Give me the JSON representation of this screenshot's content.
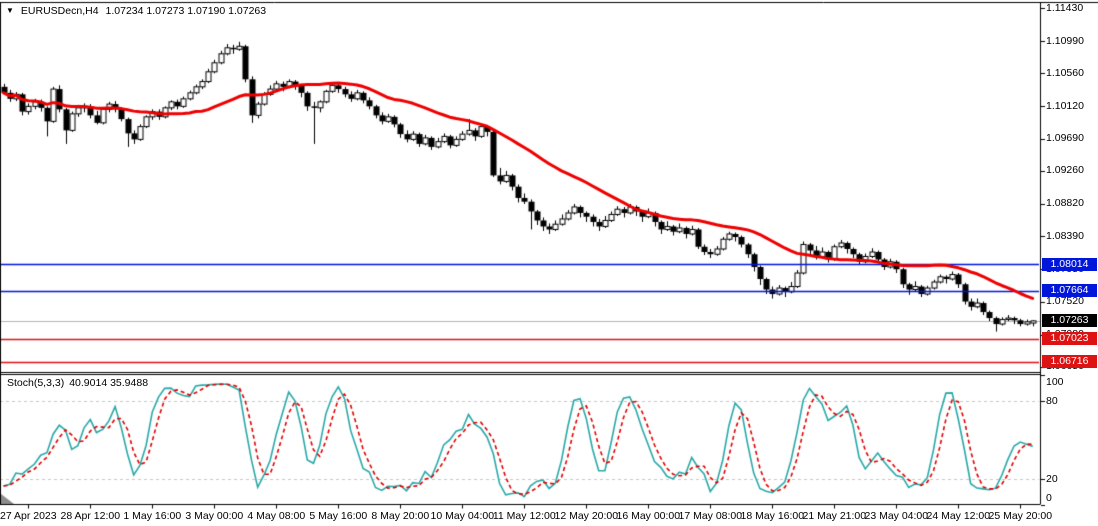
{
  "window": {
    "symbol_period": "EURUSDecn,H4",
    "ohlc_text": "1.07234 1.07273 1.07190 1.07263",
    "dropdown_icon": "▼"
  },
  "stoch_panel": {
    "label": "Stoch(5,3,3)",
    "values_text": "40.9014 35.9488"
  },
  "price_axis": {
    "tick_labels": [
      "1.11430",
      "1.10990",
      "1.10560",
      "1.10120",
      "1.09690",
      "1.09260",
      "1.08820",
      "1.08390",
      "1.07950",
      "1.07520",
      "1.07080",
      "1.06650"
    ],
    "badges": [
      {
        "label": "1.08014",
        "bg": "#0016DB"
      },
      {
        "label": "1.07664",
        "bg": "#0016DB"
      },
      {
        "label": "1.07263",
        "bg": "#000000"
      },
      {
        "label": "1.07023",
        "bg": "#DE1212"
      },
      {
        "label": "1.06716",
        "bg": "#DE1212"
      }
    ]
  },
  "stoch_axis": {
    "tick_labels": [
      "100",
      "80",
      "20",
      "0"
    ]
  },
  "time_axis": {
    "labels": [
      "27 Apr 2023",
      "28 Apr 12:00",
      "1 May 16:00",
      "3 May 00:00",
      "4 May 08:00",
      "5 May 16:00",
      "8 May 20:00",
      "10 May 04:00",
      "11 May 12:00",
      "12 May 20:00",
      "16 May 00:00",
      "17 May 08:00",
      "18 May 16:00",
      "21 May 21:00",
      "23 May 04:00",
      "24 May 12:00",
      "25 May 20:00"
    ]
  },
  "chart_data": {
    "type": "candlestick",
    "symbol": "EURUSDecn",
    "timeframe": "H4",
    "background": "#FFFFFF",
    "candle_colors": {
      "bull_body": "#FFFFFF",
      "bear_body": "#000000",
      "outline": "#000000"
    },
    "last_bar": {
      "open": 1.07234,
      "high": 1.07273,
      "low": 1.0719,
      "close": 1.07263
    },
    "y_axis_range": [
      1.06594,
      1.11483
    ],
    "grid": "off",
    "horizontal_levels": [
      {
        "price": 1.08014,
        "color": "#0016DB",
        "role": "resistance"
      },
      {
        "price": 1.07664,
        "color": "#0016DB",
        "role": "resistance"
      },
      {
        "price": 1.07263,
        "color": "#B4B4B4",
        "role": "current-price"
      },
      {
        "price": 1.07023,
        "color": "#DE1212",
        "role": "support"
      },
      {
        "price": 1.06716,
        "color": "#DE1212",
        "role": "support"
      }
    ],
    "moving_average": {
      "type": "SMA",
      "period": 24,
      "color": "#EE0000",
      "width": 3
    },
    "stochastic": {
      "k_period": 5,
      "d_period": 3,
      "slowing": 3,
      "k_last": 40.9014,
      "d_last": 35.9488,
      "k_color": "#2AA8A8",
      "d_color": "#E00000",
      "levels": [
        20,
        80
      ],
      "range": [
        0,
        100
      ]
    },
    "first_label_bar_index": 4,
    "bars_per_label": 10,
    "candles": [
      [
        1.1038,
        1.1042,
        1.1028,
        1.103
      ],
      [
        1.103,
        1.1034,
        1.1018,
        1.1022
      ],
      [
        1.1022,
        1.1031,
        1.1019,
        1.1028
      ],
      [
        1.1028,
        1.103,
        1.1,
        1.1005
      ],
      [
        1.1005,
        1.1016,
        1.1001,
        1.1012
      ],
      [
        1.1012,
        1.1022,
        1.1008,
        1.1018
      ],
      [
        1.1018,
        1.1021,
        1.1005,
        1.101
      ],
      [
        1.101,
        1.1012,
        1.0972,
        1.0992
      ],
      [
        1.0992,
        1.1038,
        1.099,
        1.1035
      ],
      [
        1.1035,
        1.104,
        1.1004,
        1.1008
      ],
      [
        1.1008,
        1.101,
        1.0962,
        1.098
      ],
      [
        1.098,
        1.1005,
        1.0978,
        1.1002
      ],
      [
        1.1002,
        1.1014,
        1.0998,
        1.101
      ],
      [
        1.101,
        1.1016,
        1.1004,
        1.1012
      ],
      [
        1.1012,
        1.1015,
        1.0996,
        1.1
      ],
      [
        1.1,
        1.1006,
        1.0988,
        1.099
      ],
      [
        1.099,
        1.101,
        1.0988,
        1.1008
      ],
      [
        1.1008,
        1.1018,
        1.1004,
        1.1015
      ],
      [
        1.1015,
        1.1019,
        1.1004,
        1.1008
      ],
      [
        1.1008,
        1.1011,
        1.0992,
        1.0995
      ],
      [
        1.0995,
        1.0997,
        1.0958,
        1.0976
      ],
      [
        1.0976,
        1.098,
        1.0962,
        1.0968
      ],
      [
        1.0968,
        1.0988,
        1.0966,
        1.0985
      ],
      [
        1.0985,
        1.1,
        1.0983,
        1.0998
      ],
      [
        1.0998,
        1.1008,
        1.0994,
        1.1005
      ],
      [
        1.1005,
        1.1008,
        1.0994,
        1.0998
      ],
      [
        1.0998,
        1.1012,
        1.0996,
        1.101
      ],
      [
        1.101,
        1.102,
        1.1007,
        1.1018
      ],
      [
        1.1018,
        1.1021,
        1.1008,
        1.1012
      ],
      [
        1.1012,
        1.1025,
        1.101,
        1.1022
      ],
      [
        1.1022,
        1.1033,
        1.102,
        1.103
      ],
      [
        1.103,
        1.1041,
        1.1028,
        1.1038
      ],
      [
        1.1038,
        1.1048,
        1.1035,
        1.1045
      ],
      [
        1.1045,
        1.1062,
        1.1043,
        1.1058
      ],
      [
        1.1058,
        1.1074,
        1.1056,
        1.107
      ],
      [
        1.107,
        1.1086,
        1.1068,
        1.1082
      ],
      [
        1.1082,
        1.1095,
        1.108,
        1.109
      ],
      [
        1.109,
        1.1094,
        1.1082,
        1.1088
      ],
      [
        1.1088,
        1.1098,
        1.1086,
        1.1092
      ],
      [
        1.1092,
        1.1094,
        1.1044,
        1.1048
      ],
      [
        1.1048,
        1.1052,
        1.099,
        1.1
      ],
      [
        1.1,
        1.1018,
        1.0996,
        1.1015
      ],
      [
        1.1015,
        1.1031,
        1.1013,
        1.1028
      ],
      [
        1.1028,
        1.104,
        1.1026,
        1.1035
      ],
      [
        1.1035,
        1.1046,
        1.1033,
        1.1042
      ],
      [
        1.1042,
        1.1045,
        1.1032,
        1.1038
      ],
      [
        1.1038,
        1.1048,
        1.1036,
        1.1045
      ],
      [
        1.1045,
        1.1047,
        1.1034,
        1.104
      ],
      [
        1.104,
        1.1042,
        1.1024,
        1.103
      ],
      [
        1.103,
        1.1032,
        1.1006,
        1.1012
      ],
      [
        1.1012,
        1.1018,
        1.0962,
        1.101
      ],
      [
        1.101,
        1.102,
        1.1004,
        1.1018
      ],
      [
        1.1018,
        1.1034,
        1.1016,
        1.1032
      ],
      [
        1.1032,
        1.1044,
        1.103,
        1.104
      ],
      [
        1.104,
        1.1042,
        1.103,
        1.1035
      ],
      [
        1.1035,
        1.1038,
        1.1024,
        1.1028
      ],
      [
        1.1028,
        1.1032,
        1.1018,
        1.1022
      ],
      [
        1.1022,
        1.1034,
        1.102,
        1.103
      ],
      [
        1.103,
        1.1032,
        1.1016,
        1.102
      ],
      [
        1.102,
        1.1024,
        1.1008,
        1.1012
      ],
      [
        1.1012,
        1.1014,
        1.0996,
        1.1
      ],
      [
        1.1,
        1.1004,
        1.0988,
        1.0992
      ],
      [
        1.0992,
        1.1002,
        1.099,
        1.0998
      ],
      [
        1.0998,
        1.1,
        1.0984,
        1.0988
      ],
      [
        1.0988,
        1.099,
        1.097,
        1.0975
      ],
      [
        1.0975,
        1.098,
        1.0964,
        1.0968
      ],
      [
        1.0968,
        1.0979,
        1.0966,
        1.0975
      ],
      [
        1.0975,
        1.0977,
        1.0958,
        1.0962
      ],
      [
        1.0962,
        1.0974,
        1.096,
        1.097
      ],
      [
        1.097,
        1.0972,
        1.0954,
        1.0958
      ],
      [
        1.0958,
        1.097,
        1.0956,
        1.0965
      ],
      [
        1.0965,
        1.0976,
        1.0963,
        1.0972
      ],
      [
        1.0972,
        1.0974,
        1.0956,
        1.096
      ],
      [
        1.096,
        1.0972,
        1.0958,
        1.0968
      ],
      [
        1.0968,
        1.0979,
        1.0966,
        1.0975
      ],
      [
        1.0975,
        1.0995,
        1.0973,
        1.098
      ],
      [
        1.098,
        1.0983,
        1.0966,
        1.0972
      ],
      [
        1.0972,
        1.0989,
        1.097,
        1.0985
      ],
      [
        1.0985,
        1.0987,
        1.0972,
        1.0978
      ],
      [
        1.0978,
        1.098,
        1.0918,
        1.092
      ],
      [
        1.092,
        1.093,
        1.0908,
        1.0912
      ],
      [
        1.0912,
        1.0926,
        1.091,
        1.092
      ],
      [
        1.092,
        1.0922,
        1.09,
        1.0905
      ],
      [
        1.0905,
        1.0908,
        1.0884,
        1.089
      ],
      [
        1.089,
        1.0896,
        1.0882,
        1.0885
      ],
      [
        1.0885,
        1.0888,
        1.0848,
        1.0872
      ],
      [
        1.0872,
        1.0874,
        1.0854,
        1.086
      ],
      [
        1.086,
        1.0864,
        1.0846,
        1.0852
      ],
      [
        1.0852,
        1.0856,
        1.0842,
        1.0848
      ],
      [
        1.0848,
        1.086,
        1.0846,
        1.0855
      ],
      [
        1.0855,
        1.0868,
        1.0853,
        1.0862
      ],
      [
        1.0862,
        1.0874,
        1.086,
        1.087
      ],
      [
        1.087,
        1.0882,
        1.0868,
        1.0878
      ],
      [
        1.0878,
        1.088,
        1.0864,
        1.087
      ],
      [
        1.087,
        1.0872,
        1.0858,
        1.0865
      ],
      [
        1.0865,
        1.0868,
        1.0852,
        1.0858
      ],
      [
        1.0858,
        1.0862,
        1.0846,
        1.0852
      ],
      [
        1.0852,
        1.0866,
        1.085,
        1.086
      ],
      [
        1.086,
        1.0872,
        1.0858,
        1.0868
      ],
      [
        1.0868,
        1.0879,
        1.0866,
        1.0875
      ],
      [
        1.0875,
        1.0878,
        1.0864,
        1.087
      ],
      [
        1.087,
        1.0882,
        1.0868,
        1.0878
      ],
      [
        1.0878,
        1.088,
        1.0866,
        1.0872
      ],
      [
        1.0872,
        1.0874,
        1.0858,
        1.0865
      ],
      [
        1.0865,
        1.0876,
        1.0863,
        1.087
      ],
      [
        1.087,
        1.0872,
        1.0852,
        1.0858
      ],
      [
        1.0858,
        1.086,
        1.0842,
        1.0848
      ],
      [
        1.0848,
        1.0859,
        1.0846,
        1.0852
      ],
      [
        1.0852,
        1.0854,
        1.084,
        1.0845
      ],
      [
        1.0845,
        1.0856,
        1.0843,
        1.085
      ],
      [
        1.085,
        1.0852,
        1.0836,
        1.0842
      ],
      [
        1.0842,
        1.0853,
        1.084,
        1.0848
      ],
      [
        1.0848,
        1.085,
        1.0822,
        1.0825
      ],
      [
        1.0825,
        1.0828,
        1.0814,
        1.0818
      ],
      [
        1.0818,
        1.0822,
        1.081,
        1.0815
      ],
      [
        1.0815,
        1.0826,
        1.0813,
        1.0822
      ],
      [
        1.0822,
        1.0838,
        1.082,
        1.0835
      ],
      [
        1.0835,
        1.0845,
        1.0833,
        1.0842
      ],
      [
        1.0842,
        1.0844,
        1.0832,
        1.0838
      ],
      [
        1.0838,
        1.084,
        1.0824,
        1.0828
      ],
      [
        1.0828,
        1.083,
        1.081,
        1.0815
      ],
      [
        1.0815,
        1.0817,
        1.0792,
        1.0798
      ],
      [
        1.0798,
        1.08,
        1.0774,
        1.0782
      ],
      [
        1.0782,
        1.0784,
        1.0762,
        1.0768
      ],
      [
        1.0768,
        1.0772,
        1.0756,
        1.0762
      ],
      [
        1.0762,
        1.0774,
        1.076,
        1.077
      ],
      [
        1.077,
        1.0772,
        1.0758,
        1.0765
      ],
      [
        1.0765,
        1.0778,
        1.0763,
        1.0772
      ],
      [
        1.0772,
        1.0794,
        1.077,
        1.079
      ],
      [
        1.079,
        1.0832,
        1.0788,
        1.0828
      ],
      [
        1.0828,
        1.083,
        1.0814,
        1.082
      ],
      [
        1.082,
        1.0826,
        1.0808,
        1.0812
      ],
      [
        1.0812,
        1.0824,
        1.081,
        1.0818
      ],
      [
        1.0818,
        1.082,
        1.0804,
        1.0808
      ],
      [
        1.0808,
        1.0828,
        1.0806,
        1.0825
      ],
      [
        1.0825,
        1.0834,
        1.0823,
        1.083
      ],
      [
        1.083,
        1.0832,
        1.0816,
        1.0822
      ],
      [
        1.0822,
        1.0824,
        1.081,
        1.0815
      ],
      [
        1.0815,
        1.0817,
        1.0801,
        1.0805
      ],
      [
        1.0805,
        1.0816,
        1.0803,
        1.0812
      ],
      [
        1.0812,
        1.0823,
        1.081,
        1.0818
      ],
      [
        1.0818,
        1.082,
        1.0804,
        1.0808
      ],
      [
        1.0808,
        1.081,
        1.0794,
        1.0798
      ],
      [
        1.0798,
        1.0809,
        1.0796,
        1.0805
      ],
      [
        1.0805,
        1.0807,
        1.079,
        1.0795
      ],
      [
        1.0795,
        1.0797,
        1.077,
        1.0775
      ],
      [
        1.0775,
        1.0777,
        1.0761,
        1.0768
      ],
      [
        1.0768,
        1.0779,
        1.0766,
        1.0772
      ],
      [
        1.0772,
        1.0774,
        1.0758,
        1.0762
      ],
      [
        1.0762,
        1.0773,
        1.076,
        1.077
      ],
      [
        1.077,
        1.0781,
        1.0768,
        1.0778
      ],
      [
        1.0778,
        1.0788,
        1.0776,
        1.0785
      ],
      [
        1.0785,
        1.0787,
        1.0776,
        1.0782
      ],
      [
        1.0782,
        1.0792,
        1.078,
        1.0788
      ],
      [
        1.0788,
        1.079,
        1.077,
        1.0775
      ],
      [
        1.0775,
        1.0777,
        1.0748,
        1.0752
      ],
      [
        1.0752,
        1.0756,
        1.074,
        1.0745
      ],
      [
        1.0745,
        1.0756,
        1.0743,
        1.075
      ],
      [
        1.075,
        1.0752,
        1.0734,
        1.0738
      ],
      [
        1.0738,
        1.074,
        1.0726,
        1.073
      ],
      [
        1.073,
        1.0732,
        1.0712,
        1.0722
      ],
      [
        1.0722,
        1.0731,
        1.072,
        1.0728
      ],
      [
        1.0728,
        1.0734,
        1.0726,
        1.073
      ],
      [
        1.073,
        1.0732,
        1.0722,
        1.0727
      ],
      [
        1.0727,
        1.0729,
        1.0719,
        1.0722
      ],
      [
        1.0722,
        1.0728,
        1.072,
        1.0725
      ],
      [
        1.07234,
        1.07273,
        1.0719,
        1.07263
      ]
    ]
  }
}
